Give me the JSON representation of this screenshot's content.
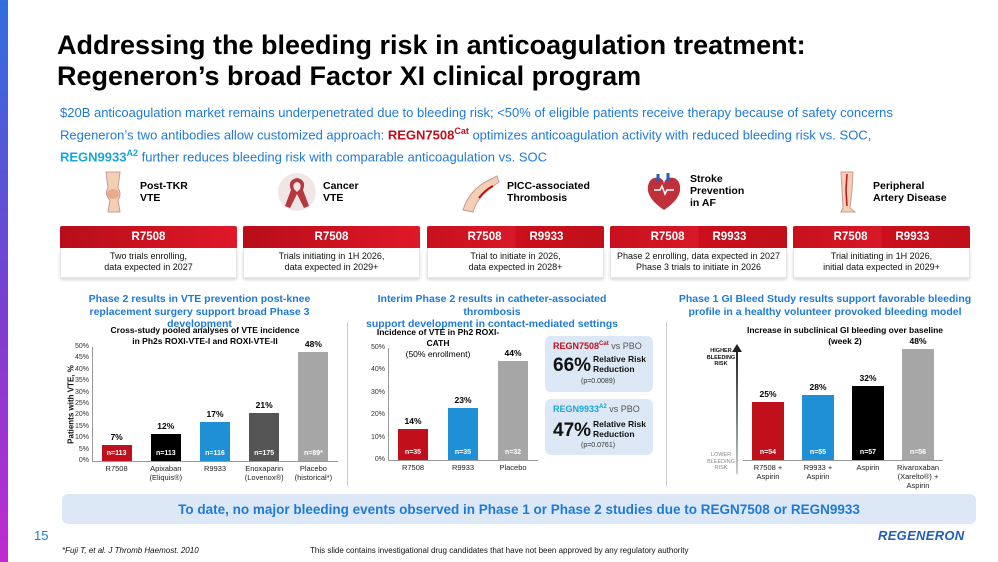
{
  "title_line1": "Addressing the bleeding risk in anticoagulation treatment:",
  "title_line2": "Regeneron’s broad Factor XI clinical program",
  "subtitle1": "$20B anticoagulation market remains underpenetrated due to bleeding risk; <50% of eligible patients receive therapy because of safety concerns",
  "subtitle2a": "Regeneron’s two antibodies allow customized approach: ",
  "subtitle2_drug1": "REGN7508",
  "subtitle2_drug1_sup": "Cat",
  "subtitle2b": " optimizes anticoagulation activity with reduced bleeding risk vs. SOC,",
  "subtitle3_drug2": "REGN9933",
  "subtitle3_drug2_sup": "A2",
  "subtitle3b": " further reduces bleeding risk with comparable anticoagulation vs. SOC",
  "indications": [
    {
      "label1": "Post-TKR",
      "label2": "VTE",
      "label3": "",
      "tag1": "R7508",
      "tag2": "",
      "text1": "Two trials enrolling,",
      "text2": "data expected in 2027",
      "icon": "knee-icon"
    },
    {
      "label1": "Cancer",
      "label2": "VTE",
      "label3": "",
      "tag1": "R7508",
      "tag2": "",
      "text1": "Trials initiating in 1H 2026,",
      "text2": "data expected in 2029+",
      "icon": "ribbon-icon"
    },
    {
      "label1": "PICC-associated",
      "label2": "Thrombosis",
      "label3": "",
      "tag1": "R7508",
      "tag2": "R9933",
      "text1": "Trial to initiate in 2026,",
      "text2": "data expected in 2028+",
      "icon": "arm-catheter-icon"
    },
    {
      "label1": "Stroke",
      "label2": "Prevention",
      "label3": "in AF",
      "tag1": "R7508",
      "tag2": "R9933",
      "text1": "Phase 2 enrolling, data expected in 2027",
      "text2": "Phase 3 trials to initiate in 2026",
      "icon": "heart-icon"
    },
    {
      "label1": "Peripheral",
      "label2": "Artery Disease",
      "label3": "",
      "tag1": "R7508",
      "tag2": "R9933",
      "text1": "Trial initiating in 1H 2026,",
      "text2": "initial data expected in 2029+",
      "icon": "leg-icon"
    }
  ],
  "section1_l1": "Phase 2 results in VTE prevention post-knee",
  "section1_l2": "replacement surgery support broad Phase 3 development",
  "section2_l1": "Interim Phase 2 results in catheter-associated thrombosis",
  "section2_l2": "support development in contact-mediated settings",
  "section3_l1": "Phase 1 GI Bleed Study results support favorable bleeding",
  "section3_l2": "profile in a healthy volunteer provoked bleeding model",
  "chart1_title1": "Cross-study pooled analyses of VTE incidence",
  "chart1_title2": "in Ph2s ROXI-VTE-I and ROXI-VTE-II",
  "chart2_title1": "Incidence of VTE in Ph2 ROXI-CATH",
  "chart2_title2": "(50% enrollment)",
  "chart3_title1": "Increase in subclinical GI bleeding over baseline",
  "chart3_title2": "(week 2)",
  "higher_risk": [
    "HIGHER",
    "BLEEDING",
    "RISK"
  ],
  "lower_risk": [
    "LOWER",
    "BLEEDING",
    "RISK"
  ],
  "rr1_drug": "REGN7508",
  "rr1_sup": "Cat",
  "rr1_vs": " vs PBO",
  "rr1_value": "66%",
  "rr1_label1": "Relative Risk",
  "rr1_label2": "Reduction",
  "rr1_p": "(p=0.0089)",
  "rr2_drug": "REGN9933",
  "rr2_sup": "A2",
  "rr2_vs": " vs PBO",
  "rr2_value": "47%",
  "rr2_label1": "Relative Risk",
  "rr2_label2": "Reduction",
  "rr2_p": "(p=0.0761)",
  "bottom_banner": "To date, no major bleeding events observed in Phase 1 or Phase 2 studies due to REGN7508 or REGN9933",
  "page_number": "15",
  "brand": "REGENERON",
  "footnote": "*Fuji T, et al. J Thromb Haemost. 2010",
  "disclaimer": "This slide contains investigational drug candidates that have not been approved by any regulatory authority",
  "colors": {
    "red": "#c0101b",
    "blue": "#1f7ad6",
    "teal": "#1aa7d8",
    "black": "#000000",
    "darkgray": "#555555",
    "gray": "#a6a6a6"
  },
  "chart_data": [
    {
      "type": "bar",
      "title": "Cross-study pooled analyses of VTE incidence in Ph2s ROXI-VTE-I and ROXI-VTE-II",
      "ylabel": "Patients with VTE, %",
      "ylim": [
        0,
        50
      ],
      "yticks": [
        "0%",
        "5%",
        "10%",
        "15%",
        "20%",
        "25%",
        "30%",
        "35%",
        "40%",
        "45%",
        "50%"
      ],
      "categories": [
        [
          "R7508"
        ],
        [
          "Apixaban",
          "(Eliquis®)"
        ],
        [
          "R9933"
        ],
        [
          "Enoxaparin",
          "(Lovenox®)"
        ],
        [
          "Placebo",
          "(historical*)"
        ]
      ],
      "values": [
        7,
        12,
        17,
        21,
        48
      ],
      "value_labels": [
        "7%",
        "12%",
        "17%",
        "21%",
        "48%"
      ],
      "n_labels": [
        "n=113",
        "n=113",
        "n=116",
        "n=175",
        "n=89*"
      ],
      "colors": [
        "#c0101b",
        "#000000",
        "#1f8fd6",
        "#555555",
        "#a6a6a6"
      ]
    },
    {
      "type": "bar",
      "title": "Incidence of VTE in Ph2 ROXI-CATH (50% enrollment)",
      "ylim": [
        0,
        50
      ],
      "yticks": [
        "0%",
        "10%",
        "20%",
        "30%",
        "40%",
        "50%"
      ],
      "categories": [
        [
          "R7508"
        ],
        [
          "R9933"
        ],
        [
          "Placebo"
        ]
      ],
      "values": [
        14,
        23,
        44
      ],
      "value_labels": [
        "14%",
        "23%",
        "44%"
      ],
      "n_labels": [
        "n=35",
        "n=35",
        "n=32"
      ],
      "colors": [
        "#c0101b",
        "#1f8fd6",
        "#a6a6a6"
      ]
    },
    {
      "type": "bar",
      "title": "Increase in subclinical GI bleeding over baseline (week 2)",
      "ylim": [
        0,
        50
      ],
      "categories": [
        [
          "R7508 +",
          "Aspirin"
        ],
        [
          "R9933 +",
          "Aspirin"
        ],
        [
          "Aspirin"
        ],
        [
          "Rivaroxaban",
          "(Xarelto®) +",
          "Aspirin"
        ]
      ],
      "values": [
        25,
        28,
        32,
        48
      ],
      "value_labels": [
        "25%",
        "28%",
        "32%",
        "48%"
      ],
      "n_labels": [
        "n=54",
        "n=55",
        "n=57",
        "n=56"
      ],
      "colors": [
        "#c0101b",
        "#1f8fd6",
        "#000000",
        "#a6a6a6"
      ]
    }
  ]
}
